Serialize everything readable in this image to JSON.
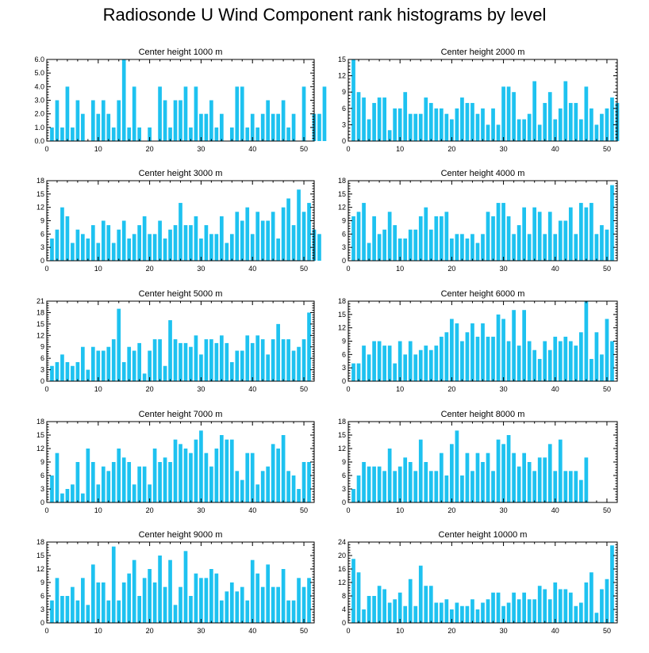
{
  "title": "Radiosonde U Wind Component rank histograms by level",
  "bar_color": "#1ec2f0",
  "chart_data": [
    {
      "type": "bar",
      "title": "Center height 1000 m",
      "ylim": [
        0,
        6
      ],
      "yticks": [
        "0.0",
        "1.0",
        "2.0",
        "3.0",
        "4.0",
        "5.0",
        "6.0"
      ],
      "xlim": [
        0,
        52
      ],
      "xticks": [
        "0",
        "10",
        "20",
        "30",
        "40",
        "50"
      ],
      "values": [
        1,
        3,
        1,
        4,
        1,
        3,
        2,
        0,
        3,
        2,
        3,
        2,
        1,
        3,
        6,
        1,
        4,
        1,
        0,
        1,
        0,
        4,
        3,
        1,
        3,
        3,
        4,
        1,
        4,
        2,
        2,
        3,
        1,
        2,
        0,
        1,
        4,
        4,
        1,
        2,
        1,
        2,
        3,
        2,
        2,
        3,
        1,
        2,
        0,
        4,
        0,
        2,
        2,
        4
      ]
    },
    {
      "type": "bar",
      "title": "Center height 2000 m",
      "ylim": [
        0,
        15
      ],
      "yticks": [
        "0",
        "3",
        "6",
        "9",
        "12",
        "15"
      ],
      "xlim": [
        0,
        52
      ],
      "xticks": [
        "0",
        "10",
        "20",
        "30",
        "40",
        "50"
      ],
      "values": [
        15,
        9,
        8,
        4,
        7,
        8,
        8,
        2,
        6,
        6,
        9,
        5,
        5,
        5,
        8,
        7,
        6,
        6,
        5,
        4,
        6,
        8,
        7,
        7,
        5,
        6,
        3,
        6,
        3,
        10,
        10,
        9,
        4,
        4,
        5,
        11,
        3,
        7,
        9,
        4,
        6,
        11,
        7,
        7,
        4,
        10,
        6,
        3,
        5,
        6,
        8,
        7
      ]
    },
    {
      "type": "bar",
      "title": "Center height 3000 m",
      "ylim": [
        0,
        18
      ],
      "yticks": [
        "0",
        "3",
        "6",
        "9",
        "12",
        "15",
        "18"
      ],
      "xlim": [
        0,
        52
      ],
      "xticks": [
        "0",
        "10",
        "20",
        "30",
        "40",
        "50"
      ],
      "values": [
        5,
        7,
        12,
        10,
        4,
        7,
        6,
        5,
        8,
        4,
        9,
        8,
        4,
        7,
        9,
        5,
        6,
        8,
        10,
        6,
        6,
        9,
        5,
        7,
        8,
        13,
        8,
        8,
        10,
        5,
        8,
        6,
        6,
        10,
        4,
        6,
        11,
        9,
        12,
        6,
        11,
        9,
        9,
        11,
        5,
        12,
        14,
        8,
        16,
        11,
        13,
        7,
        6
      ]
    },
    {
      "type": "bar",
      "title": "Center height 4000 m",
      "ylim": [
        0,
        18
      ],
      "yticks": [
        "0",
        "3",
        "6",
        "9",
        "12",
        "15",
        "18"
      ],
      "xlim": [
        0,
        52
      ],
      "xticks": [
        "0",
        "10",
        "20",
        "30",
        "40",
        "50"
      ],
      "values": [
        10,
        11,
        13,
        4,
        10,
        6,
        7,
        11,
        8,
        5,
        5,
        7,
        7,
        10,
        12,
        7,
        10,
        10,
        11,
        5,
        6,
        6,
        5,
        6,
        4,
        6,
        11,
        10,
        13,
        13,
        10,
        6,
        8,
        12,
        6,
        12,
        11,
        6,
        11,
        6,
        9,
        9,
        12,
        6,
        13,
        12,
        13,
        6,
        8,
        7,
        17
      ]
    },
    {
      "type": "bar",
      "title": "Center height 5000 m",
      "ylim": [
        0,
        21
      ],
      "yticks": [
        "0",
        "3",
        "6",
        "9",
        "12",
        "15",
        "18",
        "21"
      ],
      "xlim": [
        0,
        52
      ],
      "xticks": [
        "0",
        "10",
        "20",
        "30",
        "40",
        "50"
      ],
      "values": [
        4,
        5,
        7,
        5,
        4,
        5,
        9,
        3,
        9,
        8,
        8,
        9,
        11,
        19,
        5,
        9,
        8,
        10,
        2,
        8,
        11,
        11,
        4,
        16,
        11,
        10,
        10,
        9,
        12,
        7,
        11,
        11,
        10,
        12,
        10,
        5,
        8,
        8,
        12,
        10,
        12,
        11,
        7,
        11,
        15,
        11,
        11,
        8,
        9,
        11,
        18
      ]
    },
    {
      "type": "bar",
      "title": "Center height 6000 m",
      "ylim": [
        0,
        18
      ],
      "yticks": [
        "0",
        "3",
        "6",
        "9",
        "12",
        "15",
        "18"
      ],
      "xlim": [
        0,
        52
      ],
      "xticks": [
        "0",
        "10",
        "20",
        "30",
        "40",
        "50"
      ],
      "values": [
        4,
        4,
        8,
        6,
        9,
        9,
        8,
        8,
        4,
        9,
        6,
        9,
        6,
        7,
        8,
        7,
        8,
        10,
        11,
        14,
        13,
        9,
        11,
        13,
        10,
        13,
        10,
        10,
        15,
        14,
        9,
        16,
        8,
        16,
        9,
        7,
        5,
        9,
        7,
        10,
        9,
        10,
        9,
        8,
        11,
        18,
        5,
        11,
        6,
        14,
        9
      ]
    },
    {
      "type": "bar",
      "title": "Center height 7000 m",
      "ylim": [
        0,
        18
      ],
      "yticks": [
        "0",
        "3",
        "6",
        "9",
        "12",
        "15",
        "18"
      ],
      "xlim": [
        0,
        52
      ],
      "xticks": [
        "0",
        "10",
        "20",
        "30",
        "40",
        "50"
      ],
      "values": [
        6,
        11,
        2,
        3,
        4,
        9,
        2,
        12,
        9,
        4,
        8,
        7,
        9,
        12,
        10,
        9,
        4,
        8,
        8,
        4,
        12,
        9,
        10,
        9,
        14,
        13,
        12,
        11,
        14,
        16,
        11,
        8,
        12,
        15,
        14,
        14,
        7,
        5,
        11,
        11,
        4,
        7,
        8,
        13,
        12,
        15,
        7,
        6,
        3,
        9,
        9
      ]
    },
    {
      "type": "bar",
      "title": "Center height 8000 m",
      "ylim": [
        0,
        18
      ],
      "yticks": [
        "0",
        "3",
        "6",
        "9",
        "12",
        "15",
        "18"
      ],
      "xlim": [
        0,
        52
      ],
      "xticks": [
        "0",
        "10",
        "20",
        "30",
        "40",
        "50"
      ],
      "values": [
        3,
        6,
        9,
        8,
        8,
        8,
        7,
        12,
        7,
        8,
        10,
        9,
        7,
        14,
        9,
        7,
        7,
        11,
        6,
        13,
        16,
        6,
        11,
        7,
        11,
        9,
        11,
        7,
        14,
        13,
        15,
        11,
        8,
        11,
        9,
        7,
        10,
        10,
        13,
        7,
        14,
        7,
        7,
        7,
        5,
        10
      ]
    },
    {
      "type": "bar",
      "title": "Center height 9000 m",
      "ylim": [
        0,
        18
      ],
      "yticks": [
        "0",
        "3",
        "6",
        "9",
        "12",
        "15",
        "18"
      ],
      "xlim": [
        0,
        52
      ],
      "xticks": [
        "0",
        "10",
        "20",
        "30",
        "40",
        "50"
      ],
      "values": [
        5,
        10,
        6,
        6,
        8,
        5,
        10,
        4,
        13,
        9,
        9,
        5,
        17,
        5,
        9,
        11,
        14,
        6,
        10,
        12,
        9,
        15,
        8,
        14,
        4,
        8,
        16,
        6,
        11,
        10,
        10,
        12,
        11,
        5,
        7,
        9,
        7,
        8,
        5,
        14,
        11,
        8,
        13,
        8,
        8,
        12,
        5,
        5,
        10,
        8,
        10
      ]
    },
    {
      "type": "bar",
      "title": "Center height 10000 m",
      "ylim": [
        0,
        24
      ],
      "yticks": [
        "0",
        "4",
        "8",
        "12",
        "16",
        "20",
        "24"
      ],
      "xlim": [
        0,
        52
      ],
      "xticks": [
        "0",
        "10",
        "20",
        "30",
        "40",
        "50"
      ],
      "values": [
        19,
        15,
        4,
        8,
        8,
        11,
        10,
        6,
        7,
        9,
        5,
        13,
        5,
        17,
        11,
        11,
        6,
        6,
        7,
        4,
        6,
        5,
        5,
        7,
        4,
        6,
        7,
        9,
        9,
        5,
        6,
        9,
        7,
        9,
        7,
        7,
        11,
        10,
        7,
        12,
        10,
        10,
        9,
        5,
        6,
        12,
        15,
        3,
        10,
        13,
        23
      ]
    }
  ]
}
